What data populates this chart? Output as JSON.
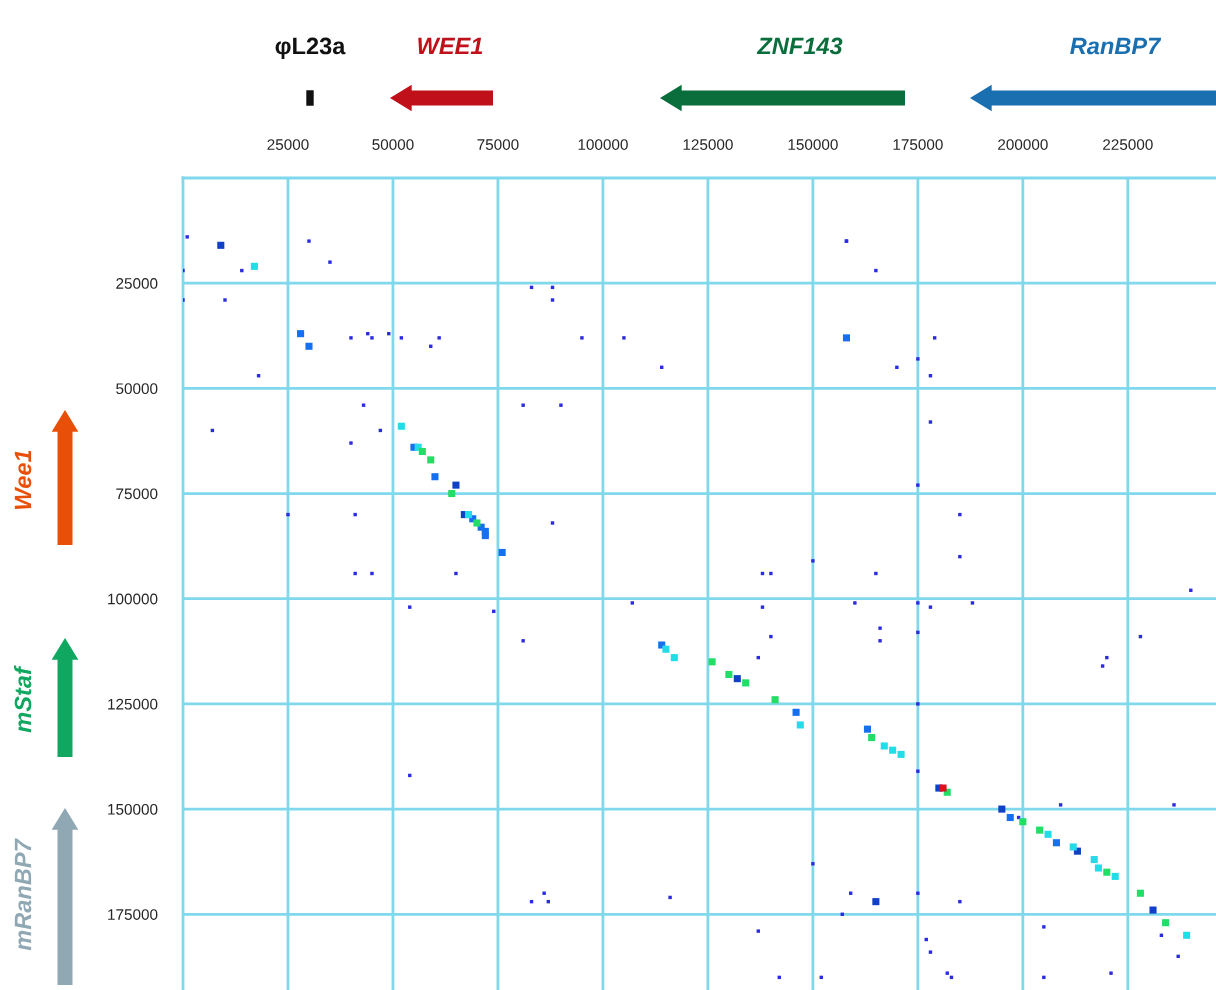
{
  "chart_data": {
    "type": "scatter",
    "xlim": [
      0,
      246000
    ],
    "ylim": [
      193000,
      0
    ],
    "xticks": [
      25000,
      50000,
      75000,
      100000,
      125000,
      150000,
      175000,
      200000,
      225000
    ],
    "yticks": [
      25000,
      50000,
      75000,
      100000,
      125000,
      150000,
      175000
    ],
    "grid": true,
    "marker": "square",
    "annotations": [
      "φL23a",
      "WEE1",
      "ZNF143",
      "RanBP7",
      "Wee1",
      "mStaf",
      "mRanBP7"
    ],
    "series": [
      {
        "color": "#2a2ae0",
        "x": [
          1000,
          0,
          0,
          10000,
          14000,
          30000,
          35000,
          18000,
          7000,
          25000,
          40000,
          44000,
          45000,
          49000,
          52000,
          59000,
          61000,
          43000,
          40000,
          47000,
          41000,
          41000,
          45000,
          54000,
          65000,
          74000,
          81000,
          83000,
          88000,
          88000,
          95000,
          105000,
          114000,
          81000,
          90000,
          88000,
          107000,
          158000,
          158000,
          165000,
          170000,
          175000,
          178000,
          179000,
          178000,
          175000,
          185000,
          185000,
          138000,
          140000,
          150000,
          165000,
          160000,
          166000,
          166000,
          175000,
          178000,
          188000,
          138000,
          140000,
          137000,
          175000,
          175000,
          175000,
          240000,
          228000,
          220000,
          219000,
          209000,
          236000,
          54000,
          150000,
          159000,
          86000,
          87000,
          83000,
          116000,
          175000,
          185000,
          157000,
          137000,
          177000,
          178000,
          182000,
          183000,
          142000,
          152000,
          205000,
          205000,
          221000,
          233000,
          237000,
          199000
        ],
        "values": [
          14000,
          22000,
          29000,
          29000,
          22000,
          15000,
          20000,
          47000,
          60000,
          80000,
          38000,
          37000,
          38000,
          37000,
          38000,
          40000,
          38000,
          54000,
          63000,
          60000,
          80000,
          94000,
          94000,
          102000,
          94000,
          103000,
          110000,
          26000,
          26000,
          29000,
          38000,
          38000,
          45000,
          54000,
          54000,
          82000,
          101000,
          15000,
          15000,
          22000,
          45000,
          43000,
          47000,
          38000,
          58000,
          73000,
          80000,
          90000,
          94000,
          94000,
          91000,
          94000,
          101000,
          107000,
          110000,
          101000,
          102000,
          101000,
          102000,
          109000,
          114000,
          108000,
          125000,
          141000,
          98000,
          109000,
          114000,
          116000,
          149000,
          149000,
          142000,
          163000,
          170000,
          170000,
          172000,
          172000,
          171000,
          170000,
          172000,
          175000,
          179000,
          181000,
          184000,
          189000,
          190000,
          190000,
          190000,
          178000,
          190000,
          189000,
          180000,
          185000,
          152000
        ]
      },
      {
        "color": "#1040c8",
        "x": [
          9000,
          65000,
          67000,
          132000,
          180000,
          195000,
          213000,
          231000,
          165000
        ],
        "values": [
          16000,
          73000,
          80000,
          119000,
          145000,
          150000,
          160000,
          174000,
          172000
        ]
      },
      {
        "color": "#1570f0",
        "x": [
          28000,
          30000,
          158000,
          55000,
          60000,
          69000,
          71000,
          72000,
          72000,
          76000,
          114000,
          146000,
          163000,
          197000,
          208000
        ],
        "values": [
          37000,
          40000,
          38000,
          64000,
          71000,
          81000,
          83000,
          84000,
          85000,
          89000,
          111000,
          127000,
          131000,
          152000,
          158000
        ]
      },
      {
        "color": "#22dde8",
        "x": [
          17000,
          52000,
          56000,
          68000,
          115000,
          117000,
          147000,
          167000,
          169000,
          171000,
          206000,
          212000,
          217000,
          218000,
          222000,
          239000
        ],
        "values": [
          21000,
          59000,
          64000,
          80000,
          112000,
          114000,
          130000,
          135000,
          136000,
          137000,
          156000,
          159000,
          162000,
          164000,
          166000,
          180000
        ]
      },
      {
        "color": "#22dd66",
        "x": [
          57000,
          59000,
          64000,
          70000,
          126000,
          130000,
          134000,
          141000,
          164000,
          182000,
          200000,
          204000,
          220000,
          228000,
          234000
        ],
        "values": [
          65000,
          67000,
          75000,
          82000,
          115000,
          118000,
          120000,
          124000,
          133000,
          146000,
          153000,
          155000,
          165000,
          170000,
          177000
        ]
      },
      {
        "color": "#e01020",
        "x": [
          181000
        ],
        "values": [
          145000
        ]
      }
    ]
  }
}
